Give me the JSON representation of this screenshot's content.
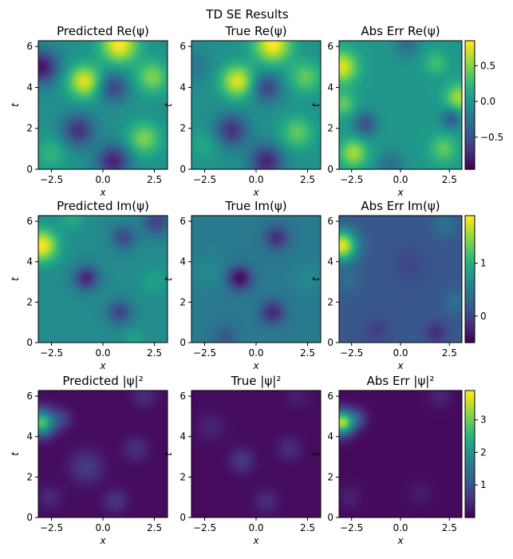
{
  "figure": {
    "suptitle": "TD SE Results"
  },
  "chart_data": [
    {
      "type": "heatmap",
      "panel": "pred_re",
      "title": "Predicted Re(ψ)",
      "xlabel": "x",
      "ylabel": "t",
      "xlim": [
        -3.14,
        3.14
      ],
      "ylim": [
        0,
        6.28
      ],
      "xticks": [
        "-2.5",
        "0.0",
        "2.5"
      ],
      "yticks": [
        "0",
        "2",
        "4",
        "6"
      ],
      "colormap": "viridis",
      "range": [
        -1,
        1
      ],
      "blobs": [
        {
          "x": 0.8,
          "t": 6.1,
          "a": 1.0,
          "s": 0.9
        },
        {
          "x": -0.9,
          "t": 4.3,
          "a": 0.9,
          "s": 0.8
        },
        {
          "x": 2.4,
          "t": 4.5,
          "a": 0.6,
          "s": 0.8
        },
        {
          "x": -3.0,
          "t": 5.0,
          "a": -0.9,
          "s": 0.8
        },
        {
          "x": 0.5,
          "t": 4.0,
          "a": -0.6,
          "s": 0.7
        },
        {
          "x": -1.2,
          "t": 1.9,
          "a": -0.7,
          "s": 0.8
        },
        {
          "x": 0.5,
          "t": 0.4,
          "a": -0.8,
          "s": 0.8
        },
        {
          "x": 2.0,
          "t": 1.5,
          "a": 0.6,
          "s": 0.8
        },
        {
          "x": -2.5,
          "t": 0.8,
          "a": 0.3,
          "s": 0.8
        }
      ]
    },
    {
      "type": "heatmap",
      "panel": "true_re",
      "title": "True Re(ψ)",
      "xlabel": "x",
      "ylabel": "t",
      "xlim": [
        -3.14,
        3.14
      ],
      "ylim": [
        0,
        6.28
      ],
      "xticks": [
        "-2.5",
        "0.0",
        "2.5"
      ],
      "yticks": [
        "0",
        "2",
        "4",
        "6"
      ],
      "colormap": "viridis",
      "range": [
        -1,
        1
      ],
      "blobs": [
        {
          "x": 0.8,
          "t": 6.1,
          "a": 1.0,
          "s": 0.9
        },
        {
          "x": -0.9,
          "t": 4.3,
          "a": 0.9,
          "s": 0.8
        },
        {
          "x": 2.4,
          "t": 4.5,
          "a": 0.5,
          "s": 0.8
        },
        {
          "x": -3.0,
          "t": 5.0,
          "a": -0.2,
          "s": 0.8
        },
        {
          "x": 0.5,
          "t": 4.0,
          "a": -0.6,
          "s": 0.7
        },
        {
          "x": -1.2,
          "t": 1.9,
          "a": -0.7,
          "s": 0.8
        },
        {
          "x": 0.5,
          "t": 0.4,
          "a": -0.8,
          "s": 0.8
        },
        {
          "x": 2.0,
          "t": 1.8,
          "a": 0.5,
          "s": 0.8
        },
        {
          "x": -2.5,
          "t": 1.2,
          "a": 0.2,
          "s": 0.8
        }
      ]
    },
    {
      "type": "heatmap",
      "panel": "err_re",
      "title": "Abs Err Re(ψ)",
      "xlabel": "x",
      "ylabel": "t",
      "xlim": [
        -3.14,
        3.14
      ],
      "ylim": [
        0,
        6.28
      ],
      "xticks": [
        "-2.5",
        "0.0",
        "2.5"
      ],
      "yticks": [
        "0",
        "2",
        "4",
        "6"
      ],
      "colormap": "viridis",
      "range": [
        -0.95,
        0.85
      ],
      "colorbar": {
        "ticks": [
          0.5,
          0.0,
          -0.5
        ],
        "labels": [
          "0.5",
          "0.0",
          "−0.5"
        ]
      },
      "base": 0.0,
      "blobs": [
        {
          "x": -3.0,
          "t": 5.0,
          "a": 0.75,
          "s": 0.8
        },
        {
          "x": -2.9,
          "t": 3.2,
          "a": 0.4,
          "s": 0.6
        },
        {
          "x": -2.4,
          "t": 0.8,
          "a": 0.6,
          "s": 0.7
        },
        {
          "x": -1.8,
          "t": 2.2,
          "a": -0.5,
          "s": 0.6
        },
        {
          "x": 3.0,
          "t": 3.5,
          "a": 0.6,
          "s": 0.7
        },
        {
          "x": 2.2,
          "t": 1.0,
          "a": 0.4,
          "s": 0.7
        },
        {
          "x": 1.8,
          "t": 5.2,
          "a": 0.3,
          "s": 0.6
        },
        {
          "x": 2.6,
          "t": 2.5,
          "a": -0.45,
          "s": 0.5
        },
        {
          "x": -0.5,
          "t": 0.2,
          "a": -0.3,
          "s": 0.7
        },
        {
          "x": 0.3,
          "t": 6.1,
          "a": -0.3,
          "s": 0.6
        }
      ]
    },
    {
      "type": "heatmap",
      "panel": "pred_im",
      "title": "Predicted Im(ψ)",
      "xlabel": "x",
      "ylabel": "t",
      "xlim": [
        -3.14,
        3.14
      ],
      "ylim": [
        0,
        6.28
      ],
      "xticks": [
        "-2.5",
        "0.0",
        "2.5"
      ],
      "yticks": [
        "0",
        "2",
        "4",
        "6"
      ],
      "colormap": "viridis",
      "range": [
        -1,
        1.2
      ],
      "base": 0.05,
      "blobs": [
        {
          "x": -3.0,
          "t": 4.8,
          "a": 1.15,
          "s": 0.8
        },
        {
          "x": -0.8,
          "t": 3.2,
          "a": -0.8,
          "s": 0.6
        },
        {
          "x": 0.8,
          "t": 1.5,
          "a": -0.6,
          "s": 0.6
        },
        {
          "x": 1.0,
          "t": 5.2,
          "a": -0.55,
          "s": 0.6
        },
        {
          "x": 2.6,
          "t": 6.0,
          "a": -0.6,
          "s": 0.7
        },
        {
          "x": 2.5,
          "t": 3.0,
          "a": 0.2,
          "s": 0.7
        },
        {
          "x": -1.5,
          "t": 6.2,
          "a": 0.3,
          "s": 0.6
        },
        {
          "x": 1.5,
          "t": 0.2,
          "a": 0.2,
          "s": 0.5
        }
      ]
    },
    {
      "type": "heatmap",
      "panel": "true_im",
      "title": "True Im(ψ)",
      "xlabel": "x",
      "ylabel": "t",
      "xlim": [
        -3.14,
        3.14
      ],
      "ylim": [
        0,
        6.28
      ],
      "xticks": [
        "-2.5",
        "0.0",
        "2.5"
      ],
      "yticks": [
        "0",
        "2",
        "4",
        "6"
      ],
      "colormap": "viridis",
      "range": [
        -1,
        1.2
      ],
      "base": -0.1,
      "blobs": [
        {
          "x": -0.8,
          "t": 3.2,
          "a": -0.85,
          "s": 0.6
        },
        {
          "x": 0.8,
          "t": 1.5,
          "a": -0.65,
          "s": 0.6
        },
        {
          "x": 1.0,
          "t": 5.2,
          "a": -0.6,
          "s": 0.6
        },
        {
          "x": -2.3,
          "t": 3.5,
          "a": 0.15,
          "s": 0.8
        },
        {
          "x": 2.5,
          "t": 3.2,
          "a": 0.15,
          "s": 0.7
        },
        {
          "x": -1.5,
          "t": 0.3,
          "a": -0.3,
          "s": 0.6
        }
      ]
    },
    {
      "type": "heatmap",
      "panel": "err_im",
      "title": "Abs Err Im(ψ)",
      "xlabel": "x",
      "ylabel": "t",
      "xlim": [
        -3.14,
        3.14
      ],
      "ylim": [
        0,
        6.28
      ],
      "xticks": [
        "-2.5",
        "0.0",
        "2.5"
      ],
      "yticks": [
        "0",
        "2",
        "4",
        "6"
      ],
      "colormap": "viridis",
      "range": [
        -0.5,
        1.9
      ],
      "colorbar": {
        "ticks": [
          1,
          0
        ],
        "labels": [
          "1",
          "0"
        ]
      },
      "base": 0.15,
      "blobs": [
        {
          "x": -3.0,
          "t": 4.8,
          "a": 1.65,
          "s": 0.75
        },
        {
          "x": -2.7,
          "t": 3.0,
          "a": 0.2,
          "s": 0.6
        },
        {
          "x": 2.3,
          "t": 5.8,
          "a": 0.25,
          "s": 0.6
        },
        {
          "x": 2.8,
          "t": 2.0,
          "a": 0.25,
          "s": 0.6
        },
        {
          "x": 1.8,
          "t": 0.5,
          "a": -0.35,
          "s": 0.5
        },
        {
          "x": -1.2,
          "t": 0.6,
          "a": -0.2,
          "s": 0.6
        },
        {
          "x": 0.5,
          "t": 3.8,
          "a": -0.15,
          "s": 0.8
        }
      ]
    },
    {
      "type": "heatmap",
      "panel": "pred_abs",
      "title": "Predicted |ψ|²",
      "xlabel": "x",
      "ylabel": "t",
      "xlim": [
        -3.14,
        3.14
      ],
      "ylim": [
        0,
        6.28
      ],
      "xticks": [
        "-2.5",
        "0.0",
        "2.5"
      ],
      "yticks": [
        "0",
        "2",
        "4",
        "6"
      ],
      "colormap": "viridis",
      "range": [
        0,
        3.5
      ],
      "base": 0.1,
      "blobs": [
        {
          "x": -3.0,
          "t": 4.7,
          "a": 2.4,
          "s": 0.65
        },
        {
          "x": -2.0,
          "t": 4.9,
          "a": 0.5,
          "s": 0.5
        },
        {
          "x": -0.8,
          "t": 2.5,
          "a": 0.55,
          "s": 0.8
        },
        {
          "x": 1.6,
          "t": 3.4,
          "a": 0.4,
          "s": 0.6
        },
        {
          "x": 0.6,
          "t": 0.8,
          "a": 0.45,
          "s": 0.6
        },
        {
          "x": 2.0,
          "t": 6.0,
          "a": 0.35,
          "s": 0.6
        },
        {
          "x": -2.6,
          "t": 1.0,
          "a": 0.3,
          "s": 0.6
        }
      ]
    },
    {
      "type": "heatmap",
      "panel": "true_abs",
      "title": "True |ψ|²",
      "xlabel": "x",
      "ylabel": "t",
      "xlim": [
        -3.14,
        3.14
      ],
      "ylim": [
        0,
        6.28
      ],
      "xticks": [
        "-2.5",
        "0.0",
        "2.5"
      ],
      "yticks": [
        "0",
        "2",
        "4",
        "6"
      ],
      "colormap": "viridis",
      "range": [
        0,
        3.5
      ],
      "base": 0.1,
      "blobs": [
        {
          "x": -0.7,
          "t": 2.8,
          "a": 0.5,
          "s": 0.6
        },
        {
          "x": 1.6,
          "t": 3.4,
          "a": 0.35,
          "s": 0.6
        },
        {
          "x": 0.5,
          "t": 0.8,
          "a": 0.35,
          "s": 0.6
        },
        {
          "x": -2.2,
          "t": 4.5,
          "a": 0.25,
          "s": 0.7
        },
        {
          "x": 2.0,
          "t": 6.0,
          "a": 0.2,
          "s": 0.6
        }
      ]
    },
    {
      "type": "heatmap",
      "panel": "err_abs",
      "title": "Abs Err |ψ|²",
      "xlabel": "x",
      "ylabel": "t",
      "xlim": [
        -3.14,
        3.14
      ],
      "ylim": [
        0,
        6.28
      ],
      "xticks": [
        "-2.5",
        "0.0",
        "2.5"
      ],
      "yticks": [
        "0",
        "2",
        "4",
        "6"
      ],
      "colormap": "viridis",
      "range": [
        0,
        3.9
      ],
      "colorbar": {
        "ticks": [
          3,
          2,
          1
        ],
        "labels": [
          "3",
          "2",
          "1"
        ]
      },
      "base": 0.1,
      "blobs": [
        {
          "x": -3.0,
          "t": 4.7,
          "a": 3.3,
          "s": 0.6
        },
        {
          "x": -2.2,
          "t": 4.9,
          "a": 0.7,
          "s": 0.5
        },
        {
          "x": 2.0,
          "t": 6.0,
          "a": 0.3,
          "s": 0.6
        },
        {
          "x": 1.0,
          "t": 1.2,
          "a": 0.2,
          "s": 0.6
        },
        {
          "x": -2.6,
          "t": 1.0,
          "a": 0.25,
          "s": 0.6
        }
      ]
    }
  ]
}
